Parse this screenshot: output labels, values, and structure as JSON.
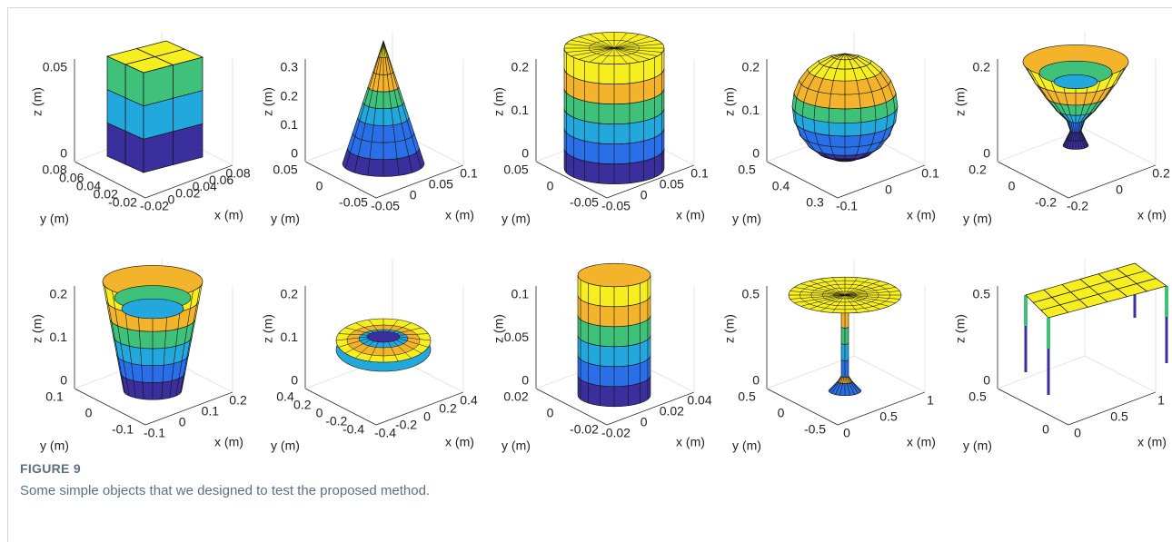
{
  "figure": {
    "panels": [
      {
        "z_label": "z (m)",
        "y_label": "y (m)",
        "x_label": "x (m)",
        "z_ticks": [
          "0",
          "0.05"
        ],
        "y_ticks": [
          "0.08",
          "0.06",
          "0.04",
          "0.02",
          "-0.02"
        ],
        "x_ticks": [
          "-0.02",
          "0",
          "0.02",
          "0.04",
          "0.06",
          "0.08"
        ]
      },
      {
        "z_label": "z (m)",
        "y_label": "y (m)",
        "x_label": "x (m)",
        "z_ticks": [
          "0",
          "0.1",
          "0.2",
          "0.3"
        ],
        "y_ticks": [
          "0.05",
          "0",
          "-0.05"
        ],
        "x_ticks": [
          "-0.05",
          "0",
          "0.05",
          "0.1"
        ]
      },
      {
        "z_label": "z (m)",
        "y_label": "y (m)",
        "x_label": "x (m)",
        "z_ticks": [
          "0",
          "0.1",
          "0.2"
        ],
        "y_ticks": [
          "0.05",
          "0",
          "-0.05"
        ],
        "x_ticks": [
          "-0.05",
          "0",
          "0.05",
          "0.1"
        ]
      },
      {
        "z_label": "z (m)",
        "y_label": "y (m)",
        "x_label": "x (m)",
        "z_ticks": [
          "0",
          "0.1",
          "0.2"
        ],
        "y_ticks": [
          "0.5",
          "0.4",
          "0.3"
        ],
        "x_ticks": [
          "-0.1",
          "0",
          "0.1"
        ]
      },
      {
        "z_label": "z (m)",
        "y_label": "y (m)",
        "x_label": "x (m)",
        "z_ticks": [
          "0",
          "0.2"
        ],
        "y_ticks": [
          "0.2",
          "0",
          "-0.2"
        ],
        "x_ticks": [
          "-0.2",
          "0",
          "0.2"
        ]
      },
      {
        "z_label": "z (m)",
        "y_label": "y (m)",
        "x_label": "x (m)",
        "z_ticks": [
          "0",
          "0.1",
          "0.2"
        ],
        "y_ticks": [
          "0.1",
          "0",
          "-0.1"
        ],
        "x_ticks": [
          "-0.1",
          "0",
          "0.1",
          "0.2"
        ]
      },
      {
        "z_label": "z (m)",
        "y_label": "y (m)",
        "x_label": "x (m)",
        "z_ticks": [
          "0",
          "0.1",
          "0.2"
        ],
        "y_ticks": [
          "0.4",
          "0.2",
          "0",
          "-0.2",
          "-0.4"
        ],
        "x_ticks": [
          "-0.4",
          "-0.2",
          "0",
          "0.2",
          "0.4"
        ]
      },
      {
        "z_label": "z (m)",
        "y_label": "y (m)",
        "x_label": "x (m)",
        "z_ticks": [
          "0",
          "0.05",
          "0.1"
        ],
        "y_ticks": [
          "0.02",
          "0",
          "-0.02"
        ],
        "x_ticks": [
          "-0.02",
          "0",
          "0.02",
          "0.04"
        ]
      },
      {
        "z_label": "z (m)",
        "y_label": "y (m)",
        "x_label": "x (m)",
        "z_ticks": [
          "0",
          "0.5"
        ],
        "y_ticks": [
          "0.5",
          "0",
          "-0.5"
        ],
        "x_ticks": [
          "0",
          "0.5",
          "1"
        ]
      },
      {
        "z_label": "z (m)",
        "y_label": "y (m)",
        "x_label": "x (m)",
        "z_ticks": [
          "0",
          "0.5"
        ],
        "y_ticks": [
          "0.5",
          "0"
        ],
        "x_ticks": [
          "0",
          "0.5",
          "1"
        ]
      }
    ],
    "label": "FIGURE 9",
    "caption": "Some simple objects that we designed to test the proposed method."
  }
}
